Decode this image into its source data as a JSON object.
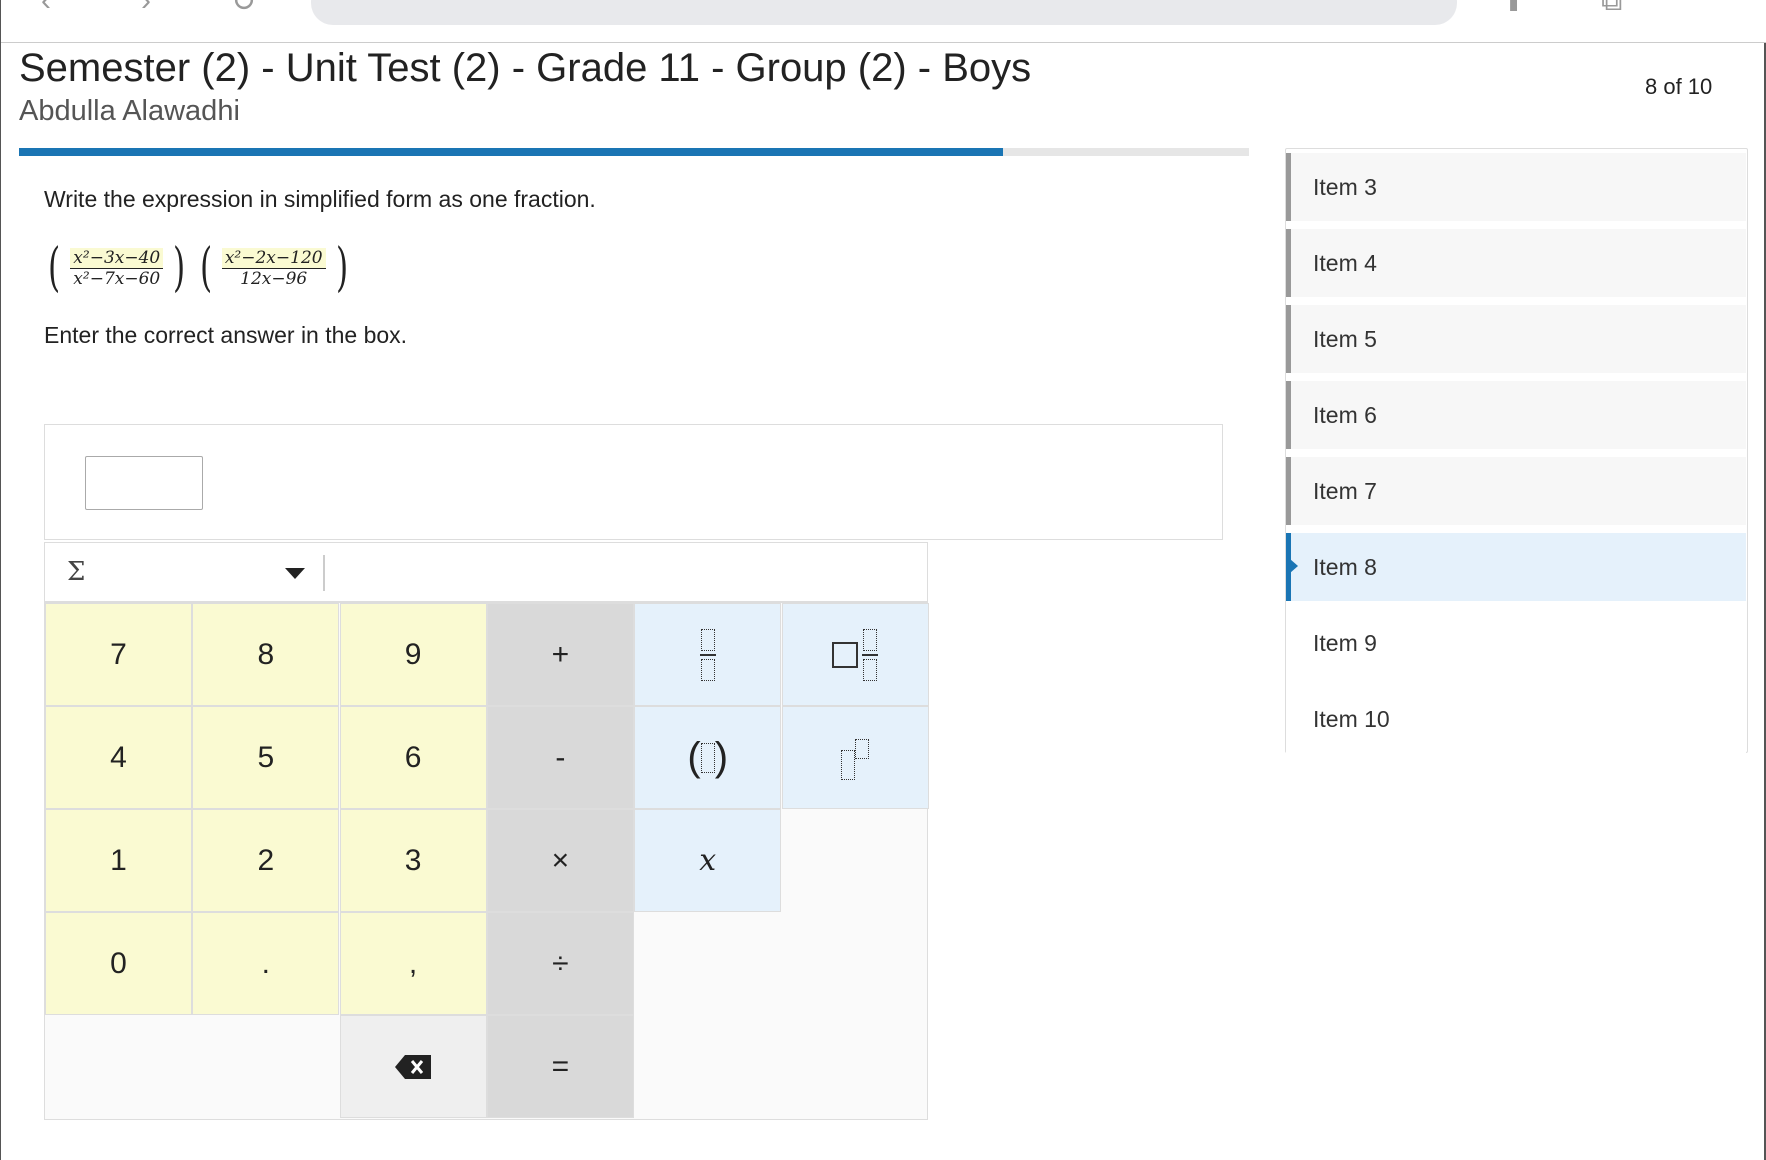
{
  "header": {
    "title": "Semester (2) - Unit Test (2) - Grade 11 - Group (2) - Boys",
    "student": "Abdulla Alawadhi",
    "position": "8 of 10",
    "progress": 0.8
  },
  "question": {
    "prompt": "Write the expression in simplified form as one fraction.",
    "fraction1": {
      "num": "x²−3x−40",
      "den": "x²−7x−60"
    },
    "fraction2": {
      "num": "x²−2x−120",
      "den": "12x−96"
    },
    "instruction": "Enter the correct answer in the box.",
    "answer": ""
  },
  "keypad": {
    "menu": "Σ",
    "keys": [
      "7",
      "8",
      "9",
      "+",
      "4",
      "5",
      "6",
      "-",
      "1",
      "2",
      "3",
      "×",
      "0",
      ".",
      ",",
      "÷",
      "="
    ],
    "var": "x"
  },
  "sidebar": {
    "items": [
      {
        "label": "Item 3"
      },
      {
        "label": "Item 4"
      },
      {
        "label": "Item 5"
      },
      {
        "label": "Item 6"
      },
      {
        "label": "Item 7"
      },
      {
        "label": "Item 8"
      },
      {
        "label": "Item 9"
      },
      {
        "label": "Item 10"
      }
    ]
  },
  "colors": {
    "accent": "#1a75b4",
    "number_keys": "#fafad2",
    "operator_keys": "#d9d9d9",
    "template_keys": "#e5f1fb"
  }
}
